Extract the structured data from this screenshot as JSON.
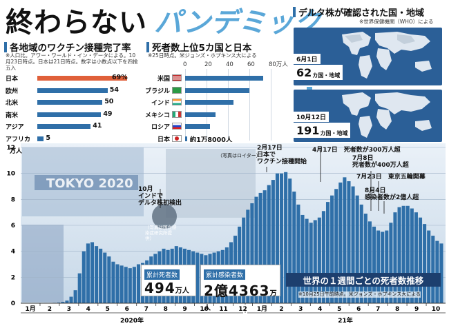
{
  "header": {
    "title_main": "終わらない",
    "title_accent": "パンデミック"
  },
  "vaccine": {
    "title": "各地域のワクチン接種完了率",
    "note": "※人口比。アワー・ワールド・イン・データによる。10月23日時点。日本は21日時点。数字は小数点以下を四捨五入",
    "items": [
      {
        "label": "日本",
        "value": 69,
        "display": "69%",
        "highlight": true
      },
      {
        "label": "欧州",
        "value": 54,
        "display": "54"
      },
      {
        "label": "北米",
        "value": 50,
        "display": "50"
      },
      {
        "label": "南米",
        "value": 49,
        "display": "49"
      },
      {
        "label": "アジア",
        "value": 41,
        "display": "41"
      },
      {
        "label": "アフリカ",
        "value": 5,
        "display": "5"
      }
    ]
  },
  "deaths": {
    "title": "死者数上位5カ国と日本",
    "note": "※25日時点。米ジョンズ・ホプキンス大による",
    "axis_ticks": [
      "0",
      "20",
      "40",
      "60",
      "80万人"
    ],
    "items": [
      {
        "label": "米国",
        "value": 73,
        "flag": "us"
      },
      {
        "label": "ブラジル",
        "value": 60,
        "flag": "br"
      },
      {
        "label": "インド",
        "value": 45,
        "flag": "in"
      },
      {
        "label": "メキシコ",
        "value": 28.5,
        "flag": "mx"
      },
      {
        "label": "ロシア",
        "value": 23,
        "flag": "ru"
      },
      {
        "label": "日本",
        "value": 1.8,
        "flag": "jp",
        "display": "約1万8000人"
      }
    ]
  },
  "delta": {
    "title": "デルタ株が確認された国・地域",
    "note": "※世界保健機関（WHO）による",
    "map1": {
      "date": "6月1日",
      "count": "62",
      "unit": "カ国・地域"
    },
    "map2": {
      "date": "10月12日",
      "count": "191",
      "unit": "カ国・地域"
    }
  },
  "main": {
    "title": "世界の１週間ごとの死者数推移",
    "note": "※10月25日午前時点。米ジョンズ・ホプキンス大による",
    "photo_credit": "（写真はロイター）",
    "olympic_text": "TOKYO 2020",
    "virus_caption": "（写真は国立感染症研究所提供）",
    "total_deaths": {
      "label": "累計死者数",
      "value": "494",
      "unit": "万人"
    },
    "total_cases": {
      "label": "累計感染者数",
      "value": "2億4363",
      "unit": "万人"
    },
    "annotations": [
      {
        "id": "india",
        "text": "10月\nインドで\nデルタ株初検出"
      },
      {
        "id": "japan",
        "text": "2月17日\n日本で\nワクチン接種開始"
      },
      {
        "id": "cases300",
        "text": "4月17日　死者数が300万人超"
      },
      {
        "id": "deaths400",
        "text": "7月8日\n死者数が400万人超"
      },
      {
        "id": "olympics",
        "text": "7月23日　東京五輪開幕"
      },
      {
        "id": "cases2oku",
        "text": "8月4日\n感染者数が2億人超"
      }
    ]
  },
  "chart_data": {
    "type": "bar",
    "title": "世界の１週間ごとの死者数推移",
    "ylabel": "万人",
    "ylim": [
      0,
      12
    ],
    "yticks": [
      0,
      2,
      4,
      6,
      8,
      10,
      12
    ],
    "x_month_labels": [
      "1月",
      "2",
      "3",
      "4",
      "5",
      "6",
      "7",
      "8",
      "9",
      "10",
      "11",
      "12",
      "1月",
      "2",
      "3",
      "4",
      "5",
      "6",
      "7",
      "8",
      "9",
      "10"
    ],
    "year_labels": [
      "2020年",
      "21年"
    ],
    "values": [
      0.0,
      0.0,
      0.01,
      0.01,
      0.02,
      0.03,
      0.03,
      0.04,
      0.06,
      0.1,
      0.2,
      0.5,
      1.0,
      2.3,
      4.0,
      4.6,
      4.7,
      4.4,
      4.2,
      3.9,
      3.6,
      3.2,
      3.0,
      2.9,
      2.8,
      2.7,
      2.8,
      3.0,
      3.1,
      3.3,
      3.6,
      3.8,
      4.0,
      4.2,
      4.1,
      4.2,
      4.4,
      4.3,
      4.2,
      4.1,
      4.0,
      3.9,
      3.8,
      3.7,
      3.8,
      3.9,
      4.0,
      4.1,
      4.3,
      4.7,
      5.2,
      5.9,
      6.6,
      7.2,
      7.7,
      8.2,
      8.5,
      8.7,
      9.1,
      9.5,
      10.0,
      10.0,
      10.1,
      9.6,
      8.6,
      7.6,
      6.8,
      6.5,
      6.2,
      6.4,
      6.6,
      7.1,
      7.8,
      8.3,
      8.8,
      9.3,
      9.7,
      9.4,
      9.0,
      8.3,
      7.6,
      6.9,
      6.3,
      5.9,
      5.6,
      5.5,
      5.6,
      6.2,
      7.0,
      7.4,
      7.5,
      7.5,
      7.3,
      7.0,
      6.6,
      6.1,
      5.6,
      5.2,
      4.8,
      4.6
    ]
  },
  "colors": {
    "bar": "#2f6fa8",
    "highlight": "#e0603a",
    "title_accent": "#5aa7d8",
    "dark": "#1d3f6e"
  }
}
